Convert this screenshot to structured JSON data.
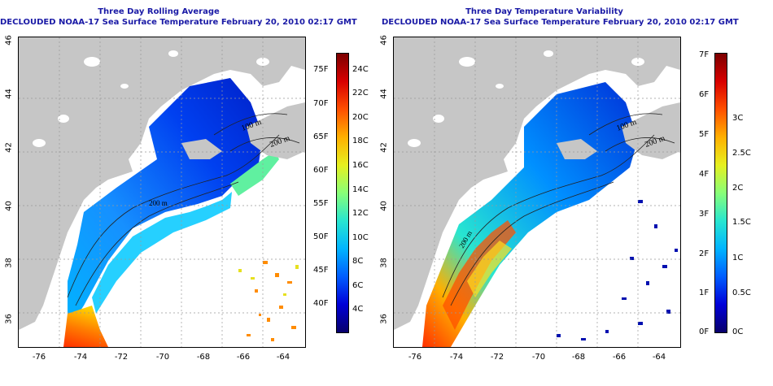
{
  "panels": [
    {
      "title_line1": "Three Day Rolling Average",
      "title_line2": "DECLOUDED NOAA-17 Sea Surface Temperature February 20, 2010 02:17 GMT",
      "contour_labels": [
        "100 m",
        "200 m",
        "200 m"
      ],
      "colorbar": {
        "colors": [
          "#08006b",
          "#0000d8",
          "#005dff",
          "#00b4ff",
          "#28e6d0",
          "#88ff78",
          "#e6f020",
          "#ffb000",
          "#ff5000",
          "#d80000",
          "#7c0000"
        ],
        "left_labels": [
          "75F",
          "70F",
          "65F",
          "60F",
          "55F",
          "50F",
          "45F",
          "40F"
        ],
        "right_labels": [
          "24C",
          "22C",
          "20C",
          "18C",
          "16C",
          "14C",
          "12C",
          "10C",
          "8C",
          "6C",
          "4C"
        ]
      }
    },
    {
      "title_line1": "Three Day Temperature Variability",
      "title_line2": "DECLOUDED NOAA-17 Sea Surface Temperature February 20, 2010 02:17 GMT",
      "contour_labels": [
        "100 m",
        "200 m",
        "200 m"
      ],
      "colorbar": {
        "colors": [
          "#08006b",
          "#0000d8",
          "#005dff",
          "#00b4ff",
          "#28e6d0",
          "#88ff78",
          "#e6f020",
          "#ffb000",
          "#ff5000",
          "#d80000",
          "#7c0000"
        ],
        "left_labels": [
          "7F",
          "6F",
          "5F",
          "4F",
          "3F",
          "2F",
          "1F",
          "0F"
        ],
        "right_labels": [
          "3C",
          "2.5C",
          "2C",
          "1.5C",
          "1C",
          "0.5C",
          "0C"
        ]
      }
    }
  ],
  "axes": {
    "y_ticks": [
      "46",
      "44",
      "42",
      "40",
      "38",
      "36"
    ],
    "x_ticks": [
      "-76",
      "-74",
      "-72",
      "-70",
      "-68",
      "-66",
      "-64"
    ]
  }
}
